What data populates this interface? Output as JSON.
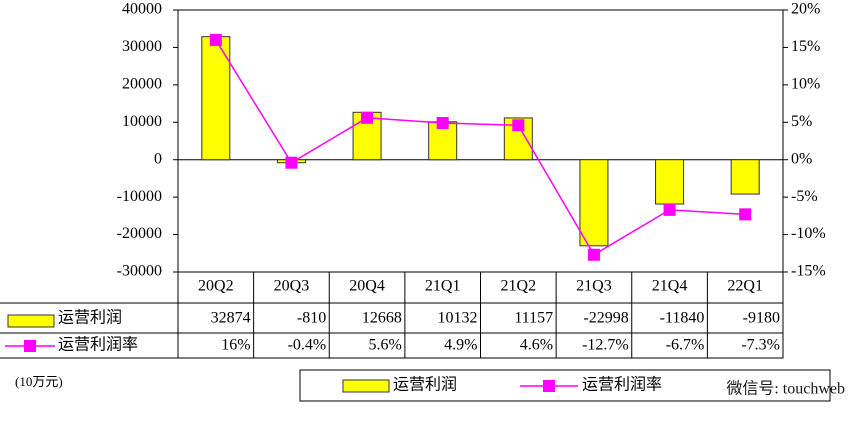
{
  "chart_data": {
    "type": "bar-line",
    "categories": [
      "20Q2",
      "20Q3",
      "20Q4",
      "21Q1",
      "21Q2",
      "21Q3",
      "21Q4",
      "22Q1"
    ],
    "series": [
      {
        "name": "运营利润",
        "color": "#ffff00",
        "values": [
          32874,
          -810,
          12668,
          10132,
          11157,
          -22998,
          -11840,
          -9180
        ]
      },
      {
        "name": "运营利润率",
        "color": "#ff00ff",
        "axis": "y2",
        "values": [
          16,
          -0.4,
          5.6,
          4.9,
          4.6,
          -12.7,
          -6.7,
          -7.3
        ],
        "value_labels": [
          "16%",
          "-0.4%",
          "5.6%",
          "4.9%",
          "4.6%",
          "-12.7%",
          "-6.7%",
          "-7.3%"
        ]
      }
    ],
    "ylim": [
      -30000,
      40000
    ],
    "yticks": [
      -30000,
      -20000,
      -10000,
      0,
      10000,
      20000,
      30000,
      40000
    ],
    "y2lim": [
      -15,
      20
    ],
    "y2ticks": [
      {
        "value": -15,
        "label": "-15%"
      },
      {
        "value": -10,
        "label": "-10%"
      },
      {
        "value": -5,
        "label": "-5%"
      },
      {
        "value": 0,
        "label": "0%"
      },
      {
        "value": 5,
        "label": "5%"
      },
      {
        "value": 10,
        "label": "10%"
      },
      {
        "value": 15,
        "label": "15%"
      },
      {
        "value": 20,
        "label": "20%"
      }
    ],
    "unit_note": "(10万元)",
    "watermark": "微信号: touchweb"
  }
}
